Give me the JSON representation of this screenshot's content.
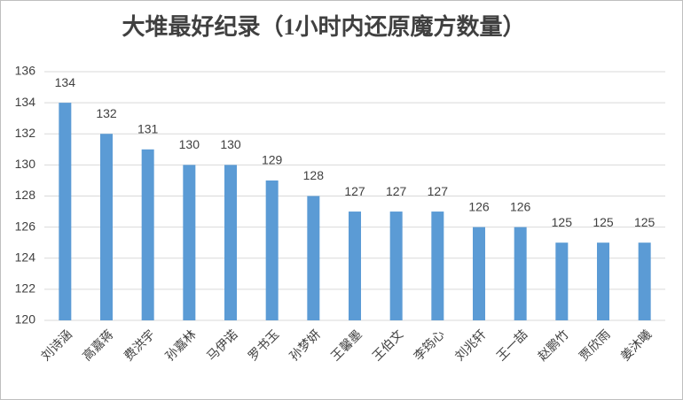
{
  "chart_data": {
    "type": "bar",
    "title": "大堆最好纪录（1小时内还原魔方数量）",
    "categories": [
      "刘诗涵",
      "高嘉蒋",
      "费洪宇",
      "孙嘉林",
      "马伊诺",
      "罗书玉",
      "孙梦妍",
      "王馨墨",
      "王伯文",
      "李筠心",
      "刘兆轩",
      "王一喆",
      "赵鹏竹",
      "贾欣雨",
      "姜沐曦"
    ],
    "values": [
      134,
      132,
      131,
      130,
      130,
      129,
      128,
      127,
      127,
      127,
      126,
      126,
      125,
      125,
      125
    ],
    "color": "#5b9bd5",
    "ylim": [
      120,
      136
    ],
    "yticks": [
      120,
      122,
      124,
      126,
      128,
      130,
      132,
      134,
      136
    ],
    "grid": true
  }
}
